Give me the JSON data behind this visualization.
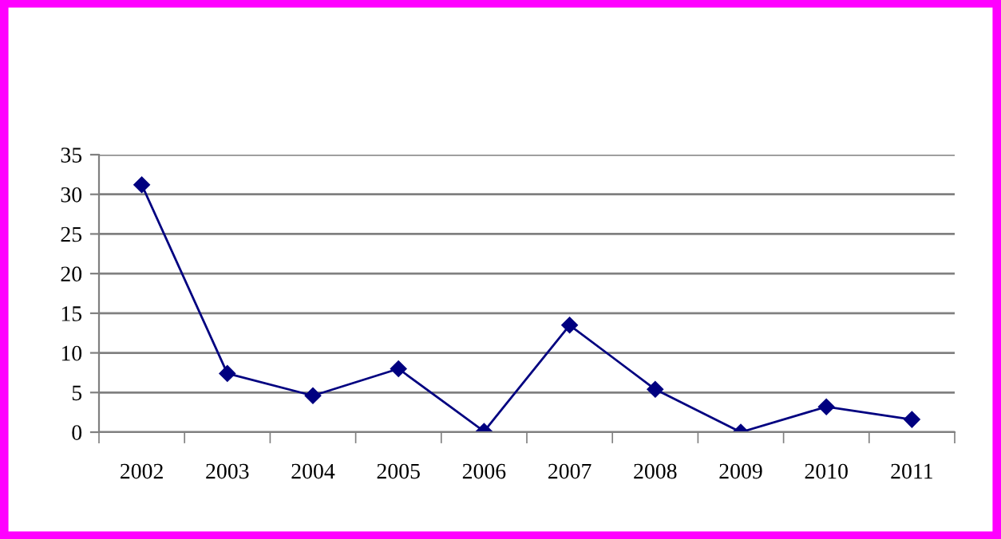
{
  "chart_data": {
    "type": "line",
    "categories": [
      "2002",
      "2003",
      "2004",
      "2005",
      "2006",
      "2007",
      "2008",
      "2009",
      "2010",
      "2011"
    ],
    "series": [
      {
        "color": "#000080",
        "values": [
          31.2,
          7.4,
          4.6,
          8.0,
          0.1,
          13.5,
          5.4,
          0.0,
          3.2,
          1.6
        ]
      }
    ],
    "ylim": [
      0,
      35
    ],
    "yticks": [
      0,
      5,
      10,
      15,
      20,
      25,
      30,
      35
    ],
    "grid": "y",
    "marker": "diamond",
    "line_style": "solid",
    "legend": false
  }
}
